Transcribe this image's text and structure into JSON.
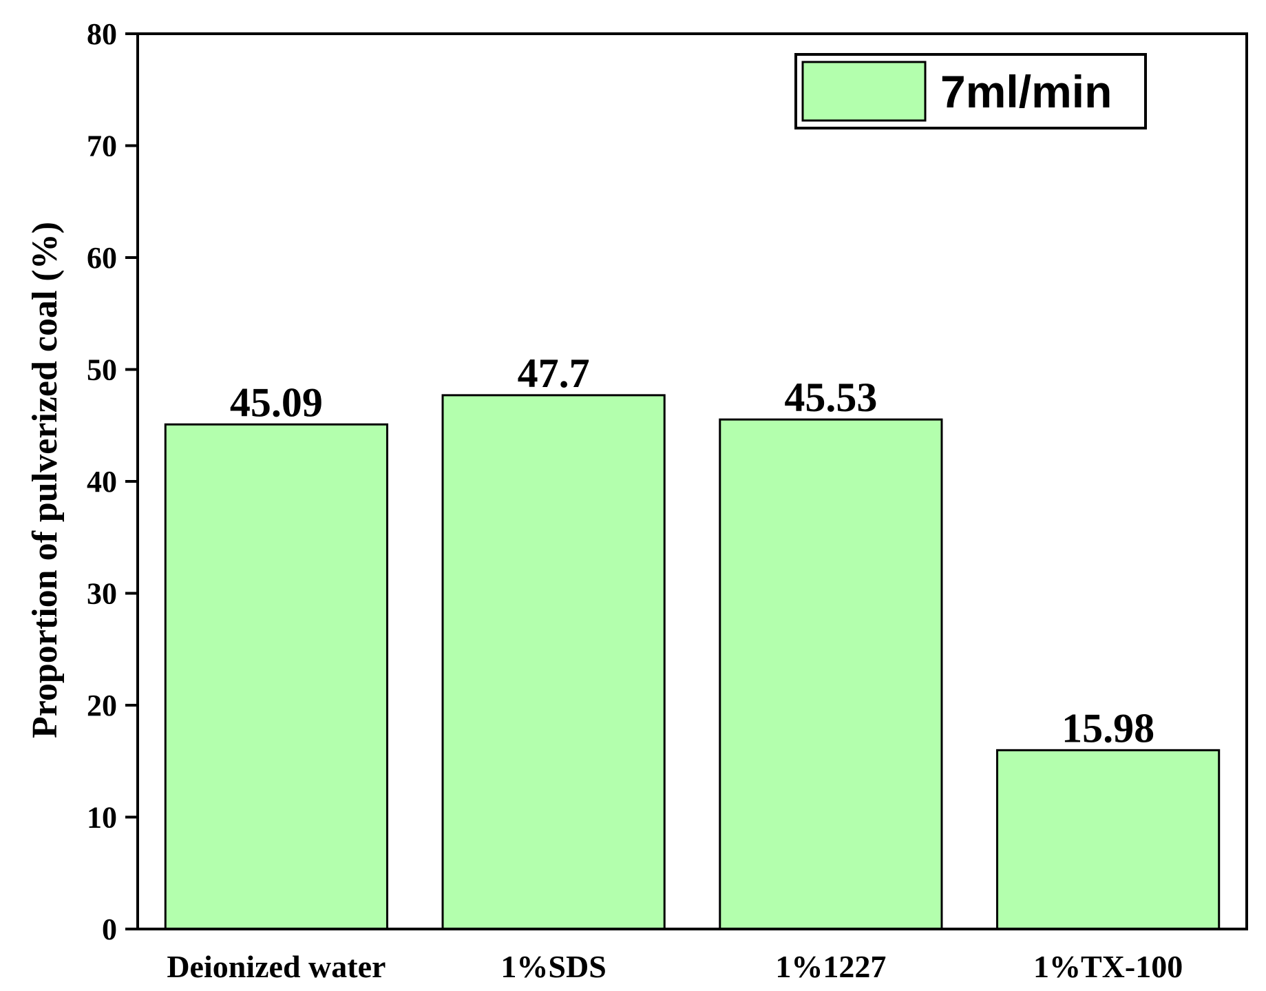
{
  "chart_data": {
    "type": "bar",
    "title": "",
    "xlabel": "",
    "ylabel": "Proportion of pulverized coal (%)",
    "ylim": [
      0,
      80
    ],
    "yticks": [
      0,
      10,
      20,
      30,
      40,
      50,
      60,
      70,
      80
    ],
    "categories": [
      "Deionized water",
      "1%SDS",
      "1%1227",
      "1%TX-100"
    ],
    "series": [
      {
        "name": "7ml/min",
        "values": [
          45.09,
          47.7,
          45.53,
          15.98
        ],
        "labels": [
          "45.09",
          "47.7",
          "45.53",
          "15.98"
        ],
        "color": "#b3ffad"
      }
    ],
    "grid": false,
    "legend_position": "top-right"
  }
}
